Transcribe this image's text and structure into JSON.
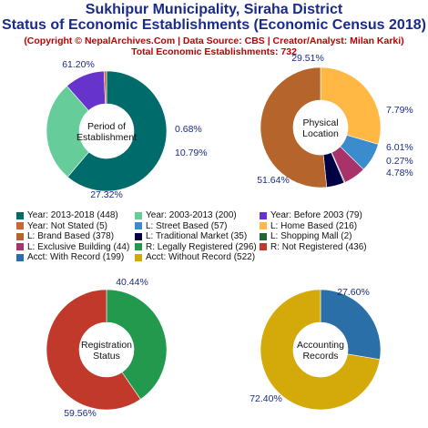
{
  "header": {
    "title_line1": "Sukhipur Municipality, Siraha District",
    "title_line2": "Status of Economic Establishments (Economic Census 2018)",
    "credit": "(Copyright © NepalArchives.Com | Data Source: CBS | Creator/Analyst: Milan Karki)",
    "total": "Total Economic Establishments: 732"
  },
  "chart_data": [
    {
      "type": "pie",
      "title": "Period of Establishment",
      "center_label": [
        "Period of",
        "Establishment"
      ],
      "slices": [
        {
          "label": "Year: 2013-2018",
          "count": 448,
          "percent": 61.2,
          "percent_label": "61.20%",
          "color": "#006b6b"
        },
        {
          "label": "Year: 2003-2013",
          "count": 200,
          "percent": 27.32,
          "percent_label": "27.32%",
          "color": "#66cc99"
        },
        {
          "label": "Year: Before 2003",
          "count": 79,
          "percent": 10.79,
          "percent_label": "10.79%",
          "color": "#6633cc"
        },
        {
          "label": "Year: Not Stated",
          "count": 5,
          "percent": 0.68,
          "percent_label": "0.68%",
          "color": "#cc6633"
        }
      ]
    },
    {
      "type": "pie",
      "title": "Physical Location",
      "center_label": [
        "Physical",
        "Location"
      ],
      "slices": [
        {
          "label": "L: Home Based",
          "count": 216,
          "percent": 29.51,
          "percent_label": "29.51%",
          "color": "#ffb844"
        },
        {
          "label": "L: Street Based",
          "count": 57,
          "percent": 7.79,
          "percent_label": "7.79%",
          "color": "#3a8ccc"
        },
        {
          "label": "L: Exclusive Building",
          "count": 44,
          "percent": 6.01,
          "percent_label": "6.01%",
          "color": "#a8336b"
        },
        {
          "label": "L: Shopping Mall",
          "count": 2,
          "percent": 0.27,
          "percent_label": "0.27%",
          "color": "#226633"
        },
        {
          "label": "L: Traditional Market",
          "count": 35,
          "percent": 4.78,
          "percent_label": "4.78%",
          "color": "#000044"
        },
        {
          "label": "L: Brand Based",
          "count": 378,
          "percent": 51.64,
          "percent_label": "51.64%",
          "color": "#b5652b"
        }
      ]
    },
    {
      "type": "pie",
      "title": "Registration Status",
      "center_label": [
        "Registration",
        "Status"
      ],
      "slices": [
        {
          "label": "R: Legally Registered",
          "count": 296,
          "percent": 40.44,
          "percent_label": "40.44%",
          "color": "#22994d"
        },
        {
          "label": "R: Not Registered",
          "count": 436,
          "percent": 59.56,
          "percent_label": "59.56%",
          "color": "#c0392b"
        }
      ]
    },
    {
      "type": "pie",
      "title": "Accounting Records",
      "center_label": [
        "Accounting",
        "Records"
      ],
      "slices": [
        {
          "label": "Acct: With Record",
          "count": 199,
          "percent": 27.6,
          "percent_label": "27.60%",
          "color": "#2a6fa8"
        },
        {
          "label": "Acct: Without Record",
          "count": 522,
          "percent": 72.4,
          "percent_label": "72.40%",
          "color": "#d4aa0a"
        }
      ]
    }
  ],
  "legend": [
    {
      "text": "Year: 2013-2018 (448)",
      "color": "#006b6b"
    },
    {
      "text": "Year: 2003-2013 (200)",
      "color": "#66cc99"
    },
    {
      "text": "Year: Before 2003 (79)",
      "color": "#6633cc"
    },
    {
      "text": "Year: Not Stated (5)",
      "color": "#cc6633"
    },
    {
      "text": "L: Street Based (57)",
      "color": "#3a8ccc"
    },
    {
      "text": "L: Home Based (216)",
      "color": "#ffb844"
    },
    {
      "text": "L: Brand Based (378)",
      "color": "#b5652b"
    },
    {
      "text": "L: Traditional Market (35)",
      "color": "#000044"
    },
    {
      "text": "L: Shopping Mall (2)",
      "color": "#226633"
    },
    {
      "text": "L: Exclusive Building (44)",
      "color": "#a8336b"
    },
    {
      "text": "R: Legally Registered (296)",
      "color": "#22994d"
    },
    {
      "text": "R: Not Registered (436)",
      "color": "#c0392b"
    },
    {
      "text": "Acct: With Record (199)",
      "color": "#2a6fa8"
    },
    {
      "text": "Acct: Without Record (522)",
      "color": "#d4aa0a"
    }
  ]
}
